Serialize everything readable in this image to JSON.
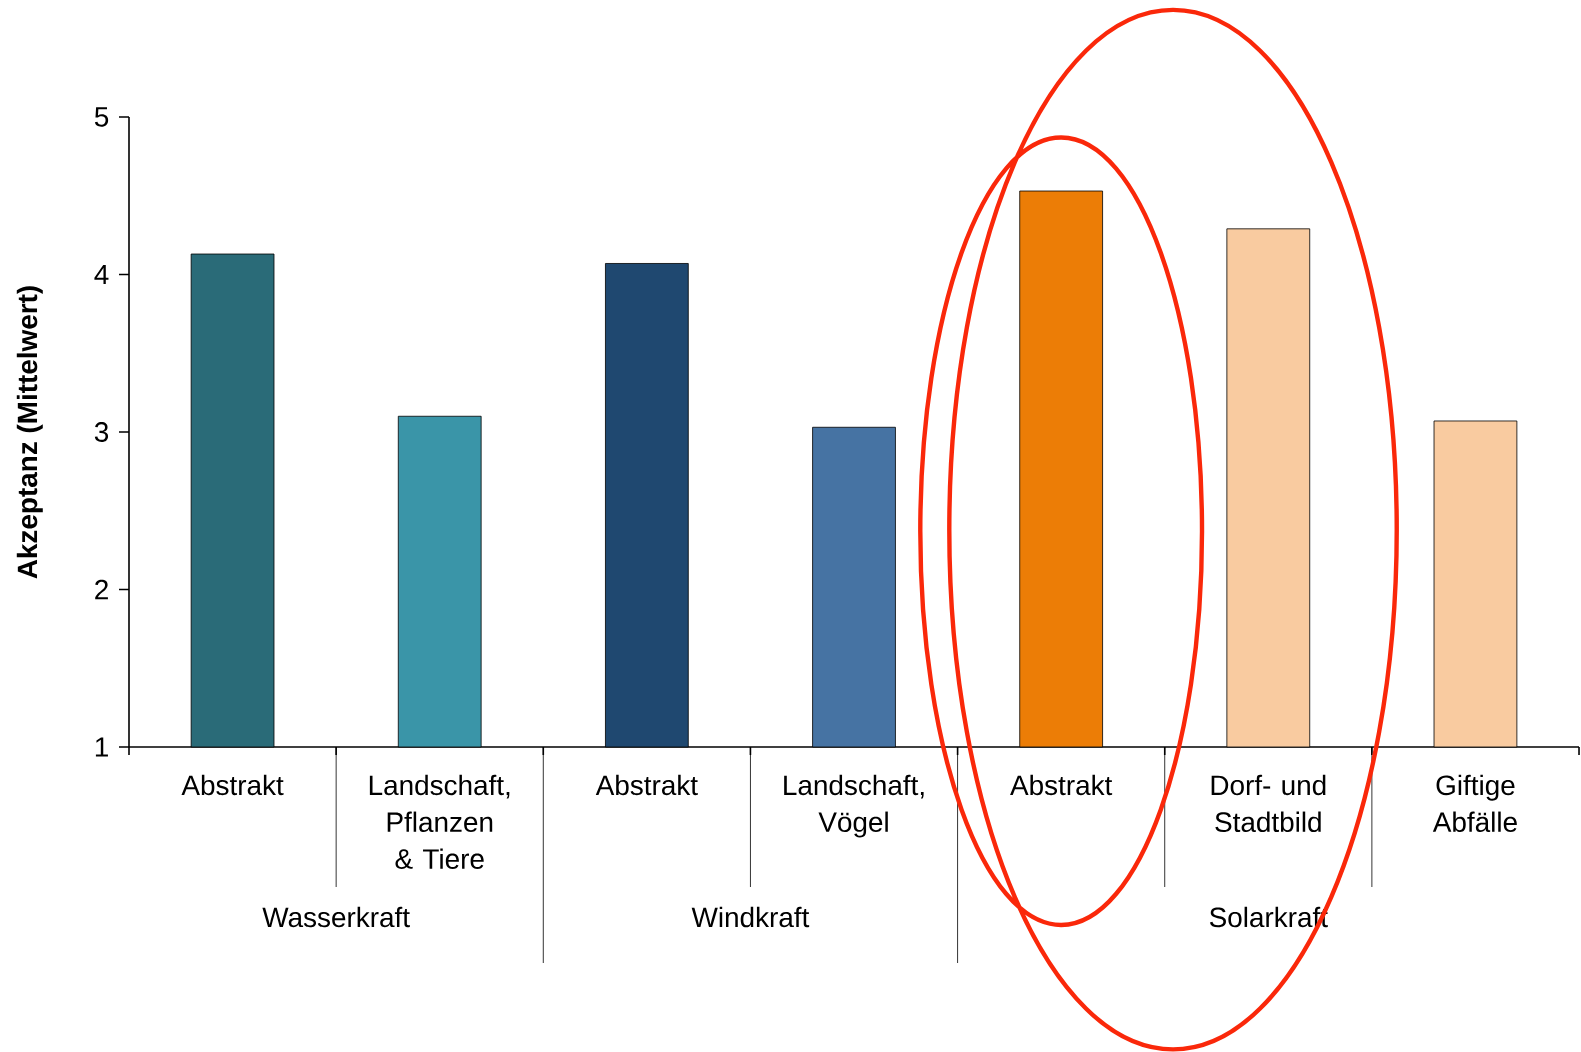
{
  "chart_data": {
    "type": "bar",
    "ylabel": "Akzeptanz (Mittelwert)",
    "categories": [
      "Abstrakt",
      "Landschaft, Pflanzen & Tiere",
      "Abstrakt",
      "Landschaft, Vögel",
      "Abstrakt",
      "Dorf- und Stadtbild",
      "Giftige Abfälle"
    ],
    "values": [
      4.13,
      3.1,
      4.07,
      3.03,
      4.53,
      4.29,
      3.07
    ],
    "colors": [
      "#2a6b78",
      "#3a95a8",
      "#1f4870",
      "#4673a3",
      "#ec7d06",
      "#f9cba0",
      "#f9cba0"
    ],
    "ylim": [
      1,
      5
    ],
    "yticks": [
      1,
      2,
      3,
      4,
      5
    ],
    "grid": false,
    "annotations": [
      "Wasserkraft",
      "Windkraft",
      "Solarkraft"
    ]
  }
}
